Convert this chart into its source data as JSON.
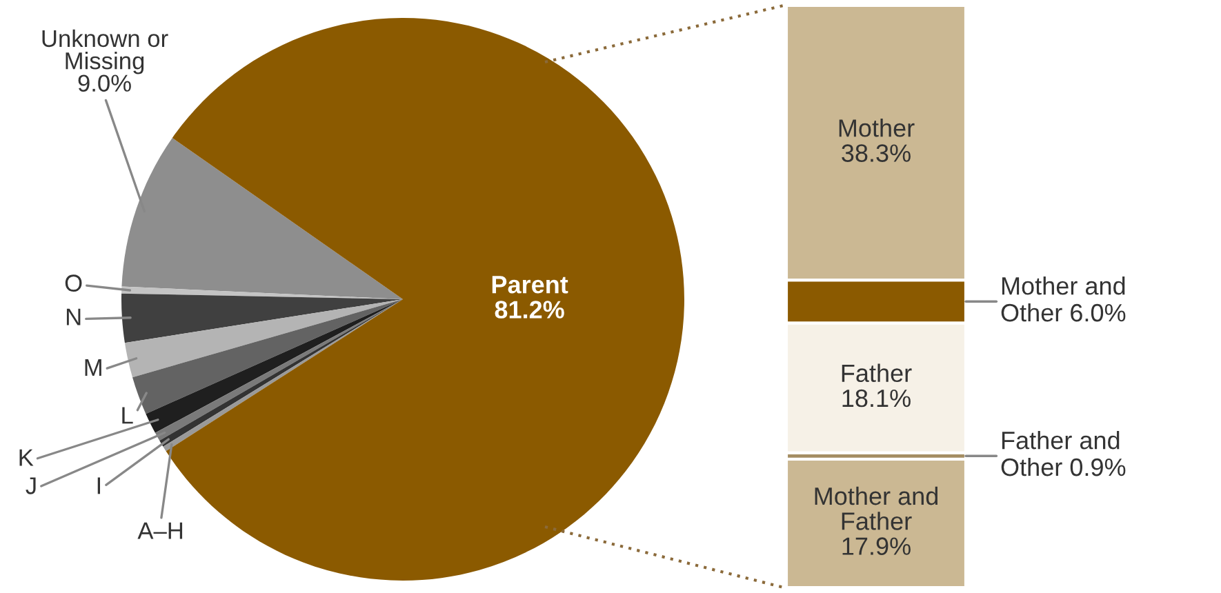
{
  "chart_data": [
    {
      "type": "pie",
      "categories": [
        "Unknown or Missing",
        "O",
        "N",
        "M",
        "L",
        "K",
        "J",
        "I",
        "A–H",
        "Parent"
      ],
      "values": [
        9.0,
        0.4,
        2.8,
        2.0,
        2.2,
        1.2,
        0.5,
        0.4,
        0.3,
        81.2
      ],
      "colors": [
        "#8e8e8e",
        "#c4c4c4",
        "#404040",
        "#b4b4b4",
        "#636363",
        "#1f1f1f",
        "#7a7a7a",
        "#333333",
        "#9a9a9a",
        "#8b5a00"
      ],
      "value_labels": [
        "9.0%",
        null,
        null,
        null,
        null,
        null,
        null,
        null,
        null,
        "81.2%"
      ]
    },
    {
      "type": "bar",
      "stacked": true,
      "categories": [
        null
      ],
      "series": [
        {
          "name": "Mother and Father",
          "color": "#cbb893",
          "values": [
            17.9
          ],
          "value_labels": [
            "17.9%"
          ]
        },
        {
          "name": "Father and Other",
          "color": "#a48d62",
          "values": [
            0.9
          ],
          "value_labels": [
            "0.9%"
          ]
        },
        {
          "name": "Father",
          "color": "#f6f1e7",
          "values": [
            18.1
          ],
          "value_labels": [
            "18.1%"
          ]
        },
        {
          "name": "Mother and Other",
          "color": "#8b5a00",
          "values": [
            6.0
          ],
          "value_labels": [
            "6.0%"
          ]
        },
        {
          "name": "Mother",
          "color": "#cbb893",
          "values": [
            38.3
          ],
          "value_labels": [
            "38.3%"
          ]
        }
      ]
    }
  ]
}
